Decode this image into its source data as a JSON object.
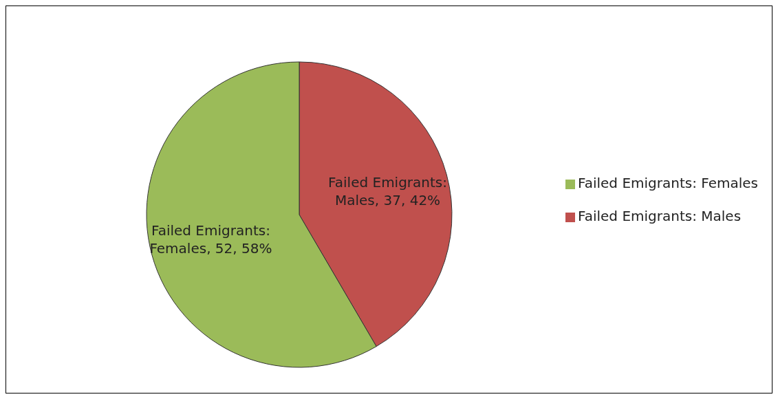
{
  "chart_data": {
    "type": "pie",
    "categories": [
      "Failed Emigrants: Males",
      "Failed Emigrants: Females"
    ],
    "values": [
      37,
      52
    ],
    "colors": [
      "#c0504d",
      "#9bbb59"
    ],
    "value_labels": [
      "Failed Emigrants: Males, 37, 42%",
      "Failed Emigrants: Females, 52, 58%"
    ],
    "legend": "right"
  }
}
